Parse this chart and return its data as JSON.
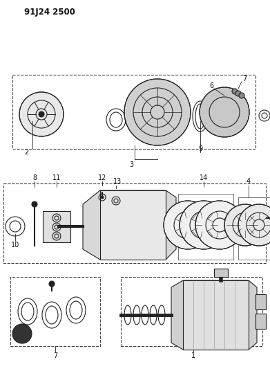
{
  "title": "91J24 2500",
  "bg_color": "#ffffff",
  "line_color": "#222222",
  "gray_fill": "#cccccc",
  "dark_fill": "#555555",
  "label_color": "#111111",
  "title_fontsize": 8.5,
  "label_fontsize": 7,
  "fig_width": 3.91,
  "fig_height": 5.33,
  "dpi": 100
}
